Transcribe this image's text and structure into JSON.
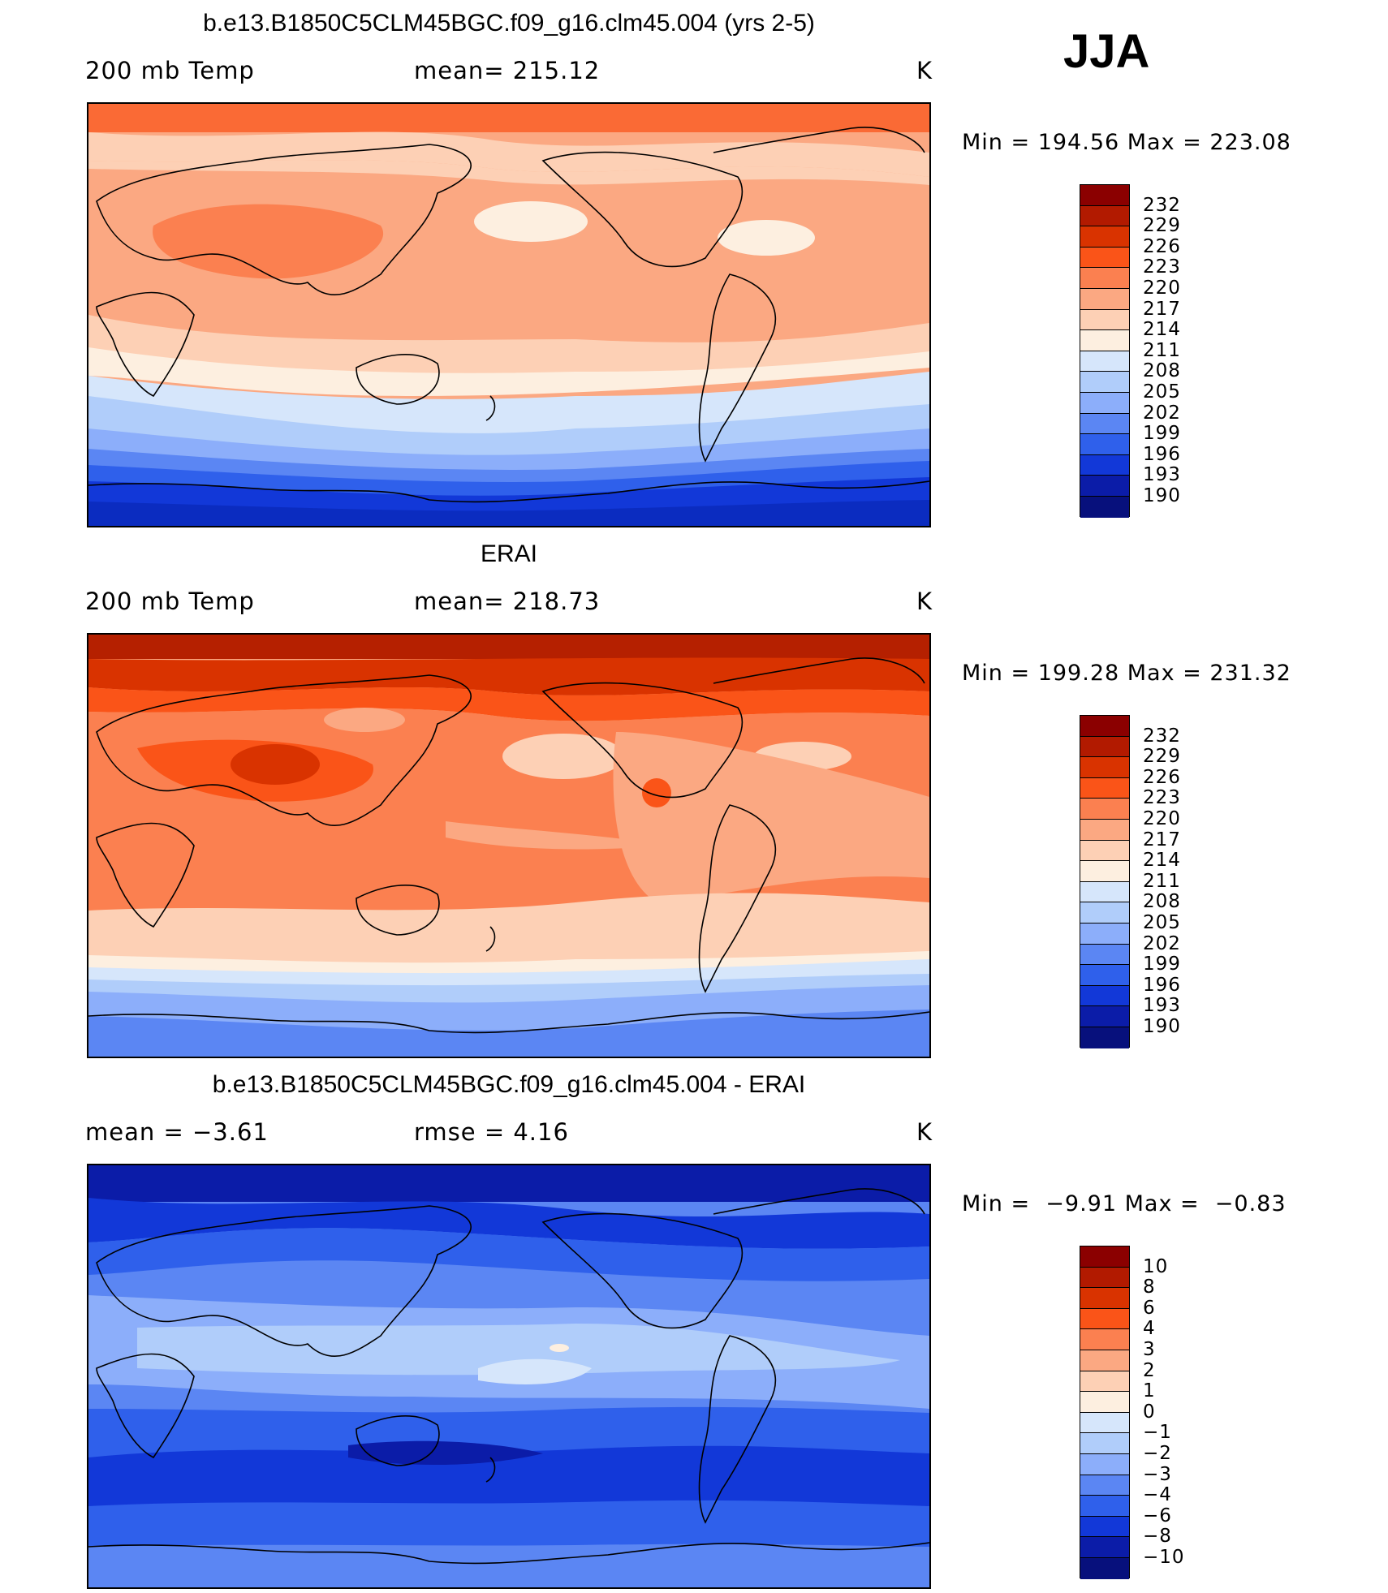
{
  "season": "JJA",
  "panels": [
    {
      "title": "b.e13.B1850C5CLM45BGC.f09_g16.clm45.004 (yrs 2-5)",
      "left_label": "200 mb Temp",
      "mid_label": "mean= 215.12",
      "units": "K",
      "minmax": "Min = 194.56 Max = 223.08"
    },
    {
      "title": "ERAI",
      "left_label": "200 mb Temp",
      "mid_label": "mean= 218.73",
      "units": "K",
      "minmax": "Min = 199.28 Max = 231.32"
    },
    {
      "title": "b.e13.B1850C5CLM45BGC.f09_g16.clm45.004 - ERAI",
      "left_label": "mean =   −3.61",
      "mid_label": "rmse =    4.16",
      "units": "K",
      "minmax": "Min =  −9.91 Max =  −0.83"
    }
  ],
  "chart_data": [
    {
      "type": "heatmap",
      "title": "b.e13.B1850C5CLM45BGC.f09_g16.clm45.004 (yrs 2-5)",
      "variable": "200 mb Temp",
      "units": "K",
      "mean": 215.12,
      "min": 194.56,
      "max": 223.08,
      "colorbar_levels": [
        "232",
        "229",
        "226",
        "223",
        "220",
        "217",
        "214",
        "211",
        "208",
        "205",
        "202",
        "199",
        "196",
        "193",
        "190"
      ],
      "colorbar_colors": [
        "#8b0000",
        "#b21a00",
        "#d93300",
        "#fa5418",
        "#fb8050",
        "#fba882",
        "#fdd0b5",
        "#fdefe0",
        "#d6e6fb",
        "#b0cdfa",
        "#8caefa",
        "#5b86f3",
        "#2f60eb",
        "#1238d8",
        "#0b1ca8",
        "#07107c"
      ]
    },
    {
      "type": "heatmap",
      "title": "ERAI",
      "variable": "200 mb Temp",
      "units": "K",
      "mean": 218.73,
      "min": 199.28,
      "max": 231.32,
      "colorbar_levels": [
        "232",
        "229",
        "226",
        "223",
        "220",
        "217",
        "214",
        "211",
        "208",
        "205",
        "202",
        "199",
        "196",
        "193",
        "190"
      ],
      "colorbar_colors": [
        "#8b0000",
        "#b21a00",
        "#d93300",
        "#fa5418",
        "#fb8050",
        "#fba882",
        "#fdd0b5",
        "#fdefe0",
        "#d6e6fb",
        "#b0cdfa",
        "#8caefa",
        "#5b86f3",
        "#2f60eb",
        "#1238d8",
        "#0b1ca8",
        "#07107c"
      ]
    },
    {
      "type": "heatmap",
      "title": "b.e13.B1850C5CLM45BGC.f09_g16.clm45.004 - ERAI",
      "units": "K",
      "mean": -3.61,
      "rmse": 4.16,
      "min": -9.91,
      "max": -0.83,
      "colorbar_levels": [
        "10",
        "8",
        "6",
        "4",
        "3",
        "2",
        "1",
        "0",
        "−1",
        "−2",
        "−3",
        "−4",
        "−6",
        "−8",
        "−10"
      ],
      "colorbar_colors": [
        "#8b0000",
        "#b21a00",
        "#d93300",
        "#fa5418",
        "#fb8050",
        "#fba882",
        "#fdd0b5",
        "#fdefe0",
        "#d6e6fb",
        "#b0cdfa",
        "#8caefa",
        "#5b86f3",
        "#2f60eb",
        "#1238d8",
        "#0b1ca8",
        "#07107c"
      ]
    }
  ]
}
